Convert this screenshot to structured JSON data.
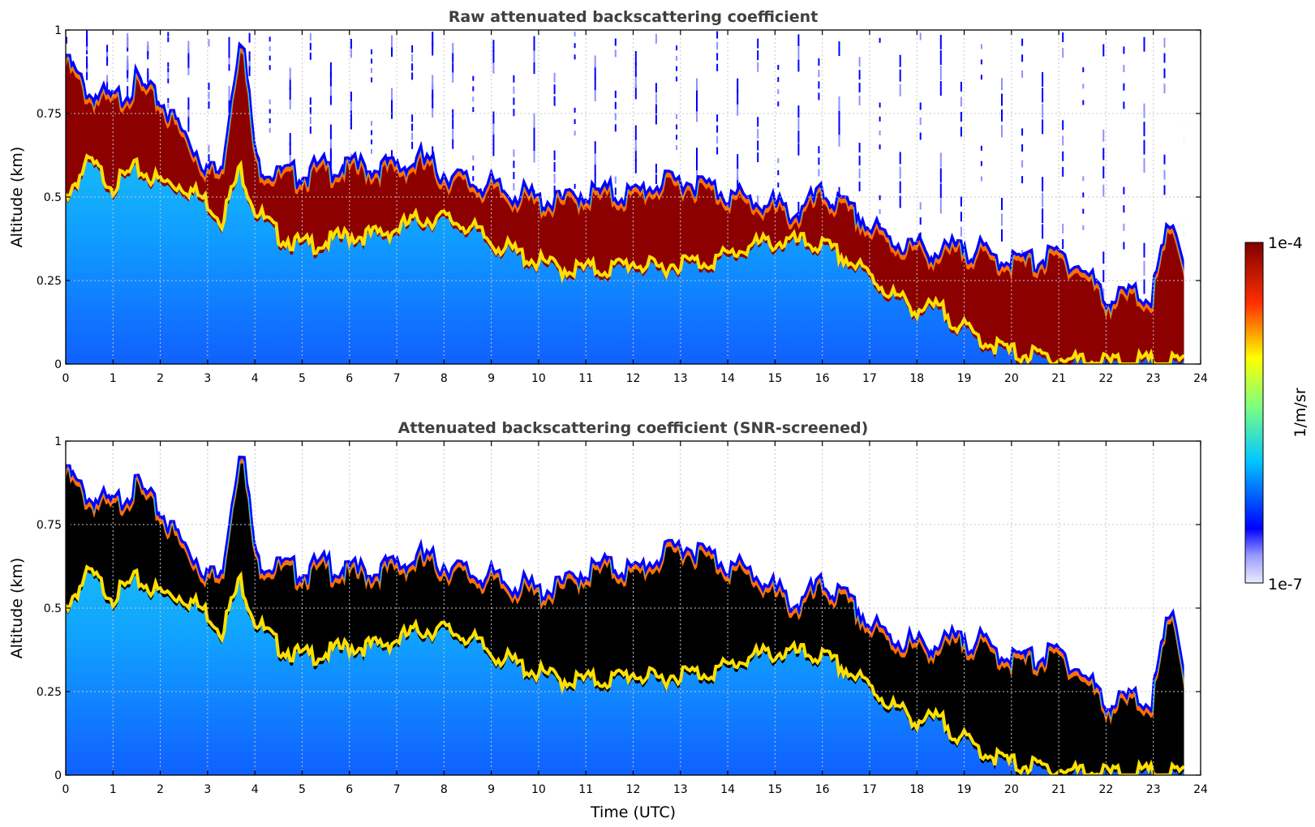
{
  "chart_data": [
    {
      "id": "raw",
      "type": "heatmap",
      "title": "Raw attenuated backscattering coefficient",
      "xlabel": "",
      "ylabel": "Altitude (km)",
      "xlim": [
        0,
        24
      ],
      "ylim": [
        0,
        1
      ],
      "xticks": [
        "0",
        "1",
        "2",
        "3",
        "4",
        "5",
        "6",
        "7",
        "8",
        "9",
        "10",
        "11",
        "12",
        "13",
        "14",
        "15",
        "16",
        "17",
        "18",
        "19",
        "20",
        "21",
        "22",
        "23",
        "24"
      ],
      "yticks": [
        "0",
        "0.25",
        "0.5",
        "0.75",
        "1"
      ],
      "grid": true,
      "data_end_hour": 23.65,
      "cloud_base_km": [
        [
          0,
          0.52
        ],
        [
          0.5,
          0.62
        ],
        [
          1,
          0.55
        ],
        [
          1.5,
          0.6
        ],
        [
          2,
          0.56
        ],
        [
          2.5,
          0.55
        ],
        [
          3,
          0.5
        ],
        [
          3.3,
          0.45
        ],
        [
          3.7,
          0.6
        ],
        [
          4,
          0.48
        ],
        [
          4.5,
          0.4
        ],
        [
          5,
          0.37
        ],
        [
          5.5,
          0.38
        ],
        [
          6,
          0.4
        ],
        [
          6.5,
          0.4
        ],
        [
          7,
          0.42
        ],
        [
          7.5,
          0.45
        ],
        [
          8,
          0.45
        ],
        [
          8.5,
          0.43
        ],
        [
          9,
          0.38
        ],
        [
          9.5,
          0.35
        ],
        [
          10,
          0.32
        ],
        [
          10.5,
          0.3
        ],
        [
          11,
          0.3
        ],
        [
          11.5,
          0.3
        ],
        [
          12,
          0.32
        ],
        [
          12.5,
          0.3
        ],
        [
          13,
          0.32
        ],
        [
          13.5,
          0.32
        ],
        [
          14,
          0.34
        ],
        [
          14.5,
          0.37
        ],
        [
          15,
          0.38
        ],
        [
          15.5,
          0.38
        ],
        [
          16,
          0.37
        ],
        [
          16.5,
          0.33
        ],
        [
          17,
          0.28
        ],
        [
          17.5,
          0.22
        ],
        [
          18,
          0.18
        ],
        [
          18.5,
          0.18
        ],
        [
          19,
          0.12
        ],
        [
          19.5,
          0.08
        ],
        [
          20,
          0.05
        ],
        [
          21,
          0.03
        ],
        [
          22,
          0.02
        ],
        [
          23,
          0.02
        ],
        [
          23.65,
          0.02
        ]
      ],
      "cloud_top_km": [
        [
          0,
          0.92
        ],
        [
          0.5,
          0.82
        ],
        [
          1,
          0.8
        ],
        [
          1.5,
          0.85
        ],
        [
          2,
          0.8
        ],
        [
          2.5,
          0.7
        ],
        [
          3,
          0.6
        ],
        [
          3.3,
          0.58
        ],
        [
          3.7,
          1.0
        ],
        [
          4,
          0.62
        ],
        [
          4.5,
          0.58
        ],
        [
          5,
          0.58
        ],
        [
          5.5,
          0.6
        ],
        [
          6,
          0.6
        ],
        [
          6.5,
          0.6
        ],
        [
          7,
          0.6
        ],
        [
          7.5,
          0.62
        ],
        [
          8,
          0.58
        ],
        [
          8.5,
          0.56
        ],
        [
          9,
          0.54
        ],
        [
          9.5,
          0.52
        ],
        [
          10,
          0.5
        ],
        [
          10.5,
          0.5
        ],
        [
          11,
          0.52
        ],
        [
          11.5,
          0.52
        ],
        [
          12,
          0.52
        ],
        [
          12.5,
          0.55
        ],
        [
          13,
          0.56
        ],
        [
          13.5,
          0.55
        ],
        [
          14,
          0.52
        ],
        [
          14.5,
          0.5
        ],
        [
          15,
          0.48
        ],
        [
          15.5,
          0.46
        ],
        [
          16,
          0.52
        ],
        [
          16.5,
          0.48
        ],
        [
          17,
          0.42
        ],
        [
          17.5,
          0.38
        ],
        [
          18,
          0.36
        ],
        [
          18.5,
          0.34
        ],
        [
          19,
          0.36
        ],
        [
          19.5,
          0.34
        ],
        [
          20,
          0.32
        ],
        [
          20.5,
          0.32
        ],
        [
          21,
          0.34
        ],
        [
          21.5,
          0.3
        ],
        [
          22,
          0.2
        ],
        [
          22.5,
          0.22
        ],
        [
          23,
          0.22
        ],
        [
          23.4,
          0.45
        ],
        [
          23.65,
          0.3
        ]
      ]
    },
    {
      "id": "screened",
      "type": "heatmap",
      "title": "Attenuated backscattering coefficient (SNR-screened)",
      "xlabel": "Time (UTC)",
      "ylabel": "Altitude (km)",
      "xlim": [
        0,
        24
      ],
      "ylim": [
        0,
        1
      ],
      "xticks": [
        "0",
        "1",
        "2",
        "3",
        "4",
        "5",
        "6",
        "7",
        "8",
        "9",
        "10",
        "11",
        "12",
        "13",
        "14",
        "15",
        "16",
        "17",
        "18",
        "19",
        "20",
        "21",
        "22",
        "23",
        "24"
      ],
      "yticks": [
        "0",
        "0.25",
        "0.5",
        "0.75",
        "1"
      ],
      "grid": true,
      "data_end_hour": 23.65,
      "cloud_base_km": [
        [
          0,
          0.52
        ],
        [
          0.5,
          0.62
        ],
        [
          1,
          0.55
        ],
        [
          1.5,
          0.6
        ],
        [
          2,
          0.56
        ],
        [
          2.5,
          0.55
        ],
        [
          3,
          0.5
        ],
        [
          3.3,
          0.45
        ],
        [
          3.7,
          0.6
        ],
        [
          4,
          0.48
        ],
        [
          4.5,
          0.4
        ],
        [
          5,
          0.37
        ],
        [
          5.5,
          0.38
        ],
        [
          6,
          0.4
        ],
        [
          6.5,
          0.4
        ],
        [
          7,
          0.42
        ],
        [
          7.5,
          0.45
        ],
        [
          8,
          0.45
        ],
        [
          8.5,
          0.43
        ],
        [
          9,
          0.38
        ],
        [
          9.5,
          0.35
        ],
        [
          10,
          0.32
        ],
        [
          10.5,
          0.3
        ],
        [
          11,
          0.3
        ],
        [
          11.5,
          0.3
        ],
        [
          12,
          0.32
        ],
        [
          12.5,
          0.3
        ],
        [
          13,
          0.32
        ],
        [
          13.5,
          0.32
        ],
        [
          14,
          0.34
        ],
        [
          14.5,
          0.37
        ],
        [
          15,
          0.38
        ],
        [
          15.5,
          0.38
        ],
        [
          16,
          0.37
        ],
        [
          16.5,
          0.33
        ],
        [
          17,
          0.28
        ],
        [
          17.5,
          0.22
        ],
        [
          18,
          0.18
        ],
        [
          18.5,
          0.18
        ],
        [
          19,
          0.12
        ],
        [
          19.5,
          0.08
        ],
        [
          20,
          0.05
        ],
        [
          21,
          0.03
        ],
        [
          22,
          0.02
        ],
        [
          23,
          0.02
        ],
        [
          23.65,
          0.02
        ]
      ],
      "cloud_top_km": [
        [
          0,
          0.92
        ],
        [
          0.5,
          0.84
        ],
        [
          1,
          0.82
        ],
        [
          1.5,
          0.88
        ],
        [
          2,
          0.8
        ],
        [
          2.5,
          0.7
        ],
        [
          3,
          0.62
        ],
        [
          3.3,
          0.6
        ],
        [
          3.7,
          1.0
        ],
        [
          4,
          0.66
        ],
        [
          4.5,
          0.64
        ],
        [
          5,
          0.62
        ],
        [
          5.5,
          0.64
        ],
        [
          6,
          0.62
        ],
        [
          6.5,
          0.62
        ],
        [
          7,
          0.64
        ],
        [
          7.5,
          0.66
        ],
        [
          8,
          0.64
        ],
        [
          8.5,
          0.62
        ],
        [
          9,
          0.6
        ],
        [
          9.5,
          0.58
        ],
        [
          10,
          0.56
        ],
        [
          10.5,
          0.58
        ],
        [
          11,
          0.62
        ],
        [
          11.5,
          0.64
        ],
        [
          12,
          0.62
        ],
        [
          12.5,
          0.66
        ],
        [
          13,
          0.7
        ],
        [
          13.5,
          0.68
        ],
        [
          14,
          0.64
        ],
        [
          14.5,
          0.62
        ],
        [
          15,
          0.56
        ],
        [
          15.5,
          0.52
        ],
        [
          16,
          0.58
        ],
        [
          16.5,
          0.54
        ],
        [
          17,
          0.46
        ],
        [
          17.5,
          0.42
        ],
        [
          18,
          0.4
        ],
        [
          18.5,
          0.4
        ],
        [
          19,
          0.42
        ],
        [
          19.5,
          0.4
        ],
        [
          20,
          0.36
        ],
        [
          20.5,
          0.36
        ],
        [
          21,
          0.38
        ],
        [
          21.5,
          0.32
        ],
        [
          22,
          0.22
        ],
        [
          22.5,
          0.24
        ],
        [
          23,
          0.24
        ],
        [
          23.4,
          0.52
        ],
        [
          23.65,
          0.3
        ]
      ]
    }
  ],
  "colorbar": {
    "label": "1/m/sr",
    "max_label": "1e-4",
    "min_label": "1e-7",
    "colormap": "jet",
    "stops": [
      "#ececff",
      "#0000ff",
      "#00c8ff",
      "#7fff7f",
      "#ffff00",
      "#ff4000",
      "#800000"
    ]
  }
}
